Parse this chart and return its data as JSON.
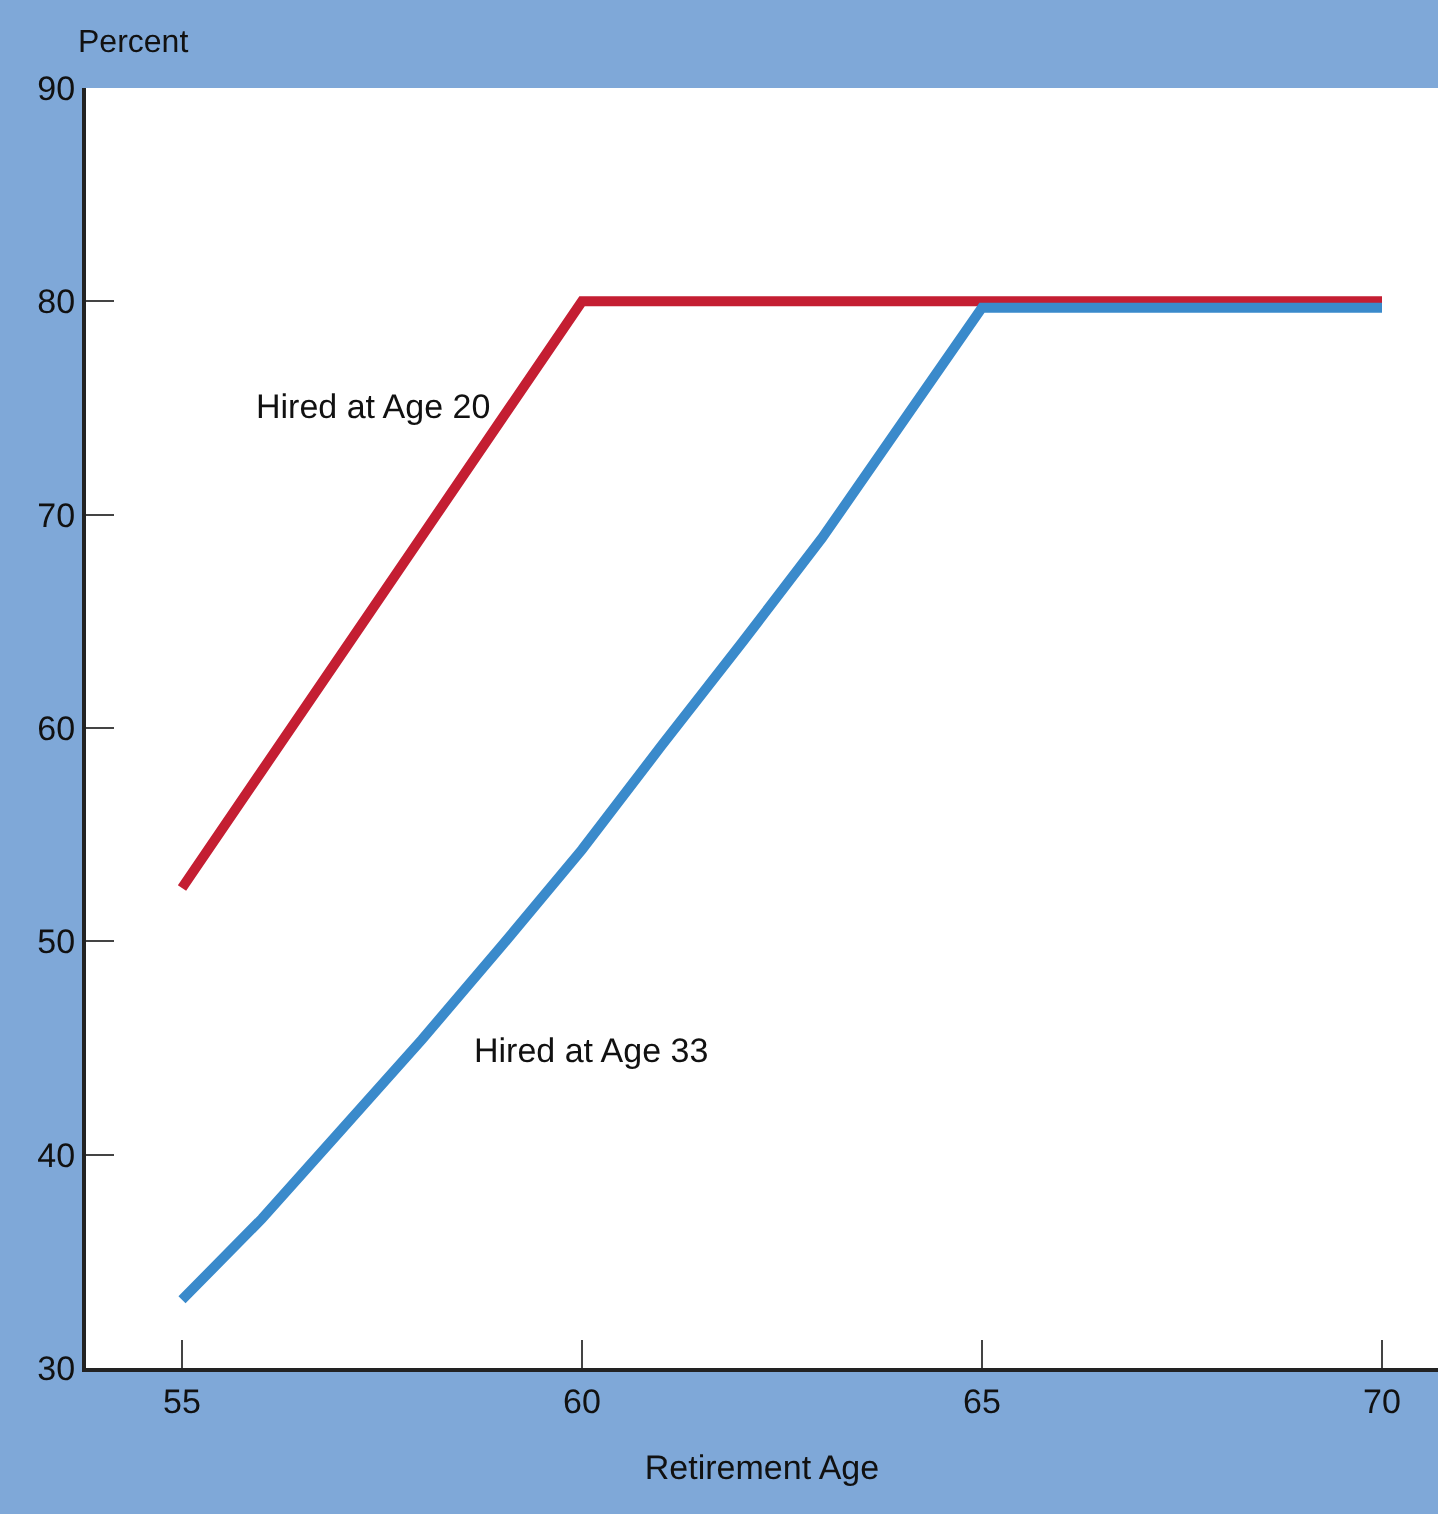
{
  "chart_data": {
    "type": "line",
    "xlabel": "Retirement Age",
    "ylabel": "Percent",
    "series": [
      {
        "name": "Hired at Age 20",
        "color": "#c41e32",
        "x": [
          55,
          56,
          57,
          58,
          59,
          60,
          61,
          62,
          63,
          64,
          65,
          66,
          67,
          68,
          69,
          70
        ],
        "values": [
          52.5,
          58,
          63.5,
          69,
          74.5,
          80,
          80,
          80,
          80,
          80,
          80,
          80,
          80,
          80,
          80,
          80
        ]
      },
      {
        "name": "Hired at Age 33",
        "color": "#3a8acb",
        "x": [
          55,
          56,
          57,
          58,
          59,
          60,
          61,
          62,
          63,
          64,
          65,
          66,
          67,
          68,
          69,
          70
        ],
        "values": [
          33.2,
          37,
          41.2,
          45.4,
          49.8,
          54.3,
          59.2,
          64,
          68.9,
          74.3,
          79.7,
          79.7,
          79.7,
          79.7,
          79.7,
          79.7
        ]
      }
    ],
    "xlim": [
      53.8,
      70.7
    ],
    "xticks": [
      55,
      60,
      65,
      70
    ],
    "ylim": [
      30,
      90
    ],
    "yticks": [
      30,
      40,
      50,
      60,
      70,
      80,
      90
    ],
    "marker": "none",
    "line_style": "solid"
  }
}
